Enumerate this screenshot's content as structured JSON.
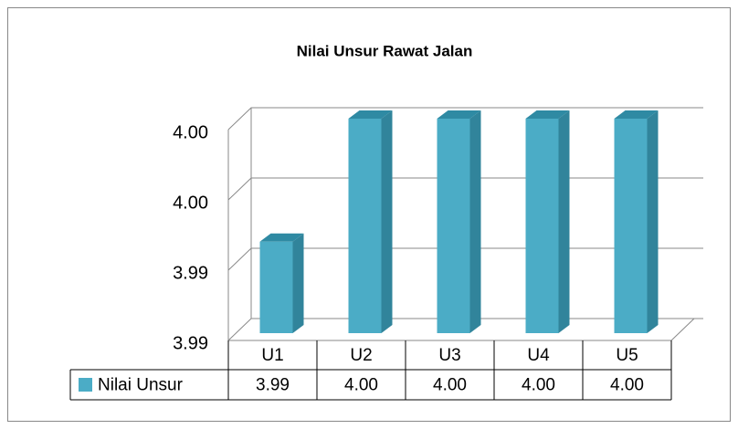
{
  "chart_data": {
    "type": "bar3d",
    "title": "Nilai Unsur Rawat Jalan",
    "categories": [
      "U1",
      "U2",
      "U3",
      "U4",
      "U5"
    ],
    "series": [
      {
        "name": "Nilai Unsur",
        "color": "#4bacc6",
        "values": [
          3.993,
          4,
          4,
          4,
          4
        ],
        "value_labels": [
          "3.99",
          "4.00",
          "4.00",
          "4.00",
          "4.00"
        ]
      }
    ],
    "ylim": [
      3.988,
      4.0
    ],
    "yticks": [
      {
        "value": 3.988,
        "label": "3.99"
      },
      {
        "value": 3.992,
        "label": "3.99"
      },
      {
        "value": 3.996,
        "label": "4.00"
      },
      {
        "value": 4.0,
        "label": "4.00"
      }
    ],
    "grid": true,
    "data_table": true
  }
}
